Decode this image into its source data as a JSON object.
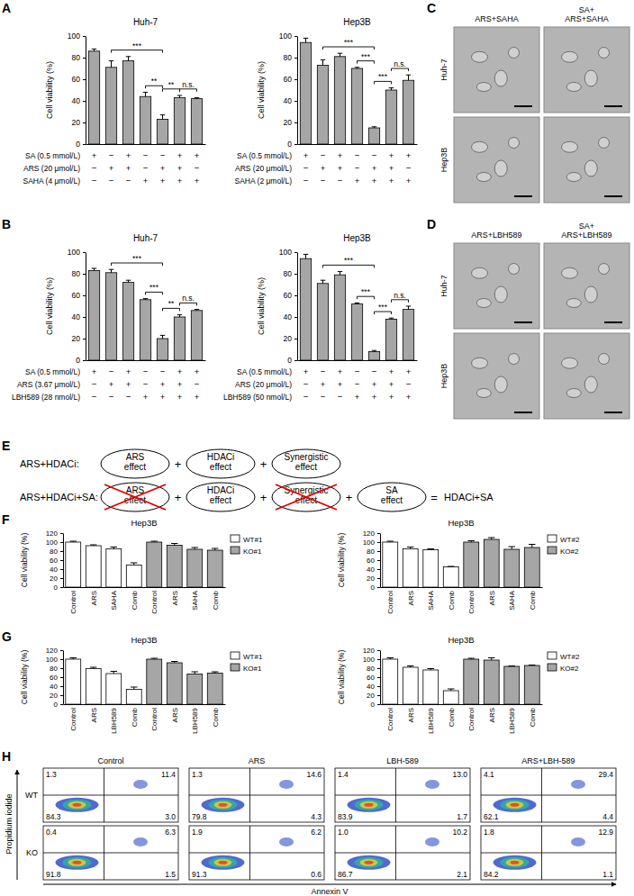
{
  "panel_labels": [
    "A",
    "B",
    "C",
    "D",
    "E",
    "F",
    "G",
    "H"
  ],
  "chart_data": [
    {
      "type": "bar",
      "title": "Huh-7",
      "y_label": "Cell viability (%)",
      "categories": [
        null,
        null,
        null,
        null,
        null,
        null,
        null
      ],
      "values": [
        86,
        71,
        77,
        44,
        23,
        43,
        42
      ],
      "errors": [
        2,
        6,
        4,
        4,
        4,
        2,
        1
      ],
      "color": "#a6a6a6",
      "ylim": [
        0,
        100
      ],
      "yticks": [
        0,
        20,
        40,
        60,
        80,
        100
      ],
      "conditions": [
        {
          "label": "SA (0.5 mmol/L)",
          "signs": [
            "+",
            "−",
            "+",
            "−",
            "−",
            "+",
            "+"
          ]
        },
        {
          "label": "ARS (20 μmol/L)",
          "signs": [
            "−",
            "+",
            "+",
            "−",
            "+",
            "+",
            "−"
          ]
        },
        {
          "label": "SAHA (4 μmol/L)",
          "signs": [
            "−",
            "−",
            "−",
            "+",
            "+",
            "+",
            "+"
          ]
        }
      ],
      "significance": [
        {
          "from": 1,
          "to": 4,
          "label": "***"
        },
        {
          "from": 3,
          "to": 4,
          "label": "**"
        },
        {
          "from": 4,
          "to": 5,
          "label": "**"
        },
        {
          "from": 5,
          "to": 6,
          "label": "n.s."
        }
      ]
    },
    {
      "type": "bar",
      "title": "Hep3B",
      "y_label": "Cell viability (%)",
      "categories": [
        null,
        null,
        null,
        null,
        null,
        null,
        null
      ],
      "values": [
        94,
        73,
        81,
        70,
        15,
        50,
        59
      ],
      "errors": [
        4,
        5,
        3,
        1,
        1,
        2,
        5
      ],
      "color": "#a6a6a6",
      "ylim": [
        0,
        100
      ],
      "yticks": [
        0,
        20,
        40,
        60,
        80,
        100
      ],
      "conditions": [
        {
          "label": "SA (0.5 mmol/L)",
          "signs": [
            "+",
            "−",
            "+",
            "−",
            "−",
            "+",
            "+"
          ]
        },
        {
          "label": "ARS (20 μmol/L)",
          "signs": [
            "−",
            "+",
            "+",
            "−",
            "+",
            "+",
            "−"
          ]
        },
        {
          "label": "SAHA (2 μmol/L)",
          "signs": [
            "−",
            "−",
            "−",
            "+",
            "+",
            "+",
            "+"
          ]
        }
      ],
      "significance": [
        {
          "from": 1,
          "to": 4,
          "label": "***"
        },
        {
          "from": 3,
          "to": 4,
          "label": "***"
        },
        {
          "from": 4,
          "to": 5,
          "label": "***"
        },
        {
          "from": 5,
          "to": 6,
          "label": "n.s."
        }
      ]
    },
    {
      "type": "bar",
      "title": "Huh-7",
      "y_label": "Cell viability (%)",
      "categories": [
        null,
        null,
        null,
        null,
        null,
        null,
        null
      ],
      "values": [
        83,
        81,
        72,
        56,
        20,
        40,
        46
      ],
      "errors": [
        2,
        3,
        2,
        1,
        3,
        2,
        1
      ],
      "color": "#a6a6a6",
      "ylim": [
        0,
        100
      ],
      "yticks": [
        0,
        20,
        40,
        60,
        80,
        100
      ],
      "conditions": [
        {
          "label": "SA (0.5 mmol/L)",
          "signs": [
            "+",
            "−",
            "+",
            "−",
            "−",
            "+",
            "+"
          ]
        },
        {
          "label": "ARS (3.67 μmol/L)",
          "signs": [
            "−",
            "+",
            "+",
            "−",
            "+",
            "+",
            "−"
          ]
        },
        {
          "label": "LBH589 (28 nmol/L)",
          "signs": [
            "−",
            "−",
            "−",
            "+",
            "+",
            "+",
            "+"
          ]
        }
      ],
      "significance": [
        {
          "from": 1,
          "to": 4,
          "label": "***"
        },
        {
          "from": 3,
          "to": 4,
          "label": "***"
        },
        {
          "from": 4,
          "to": 5,
          "label": "**"
        },
        {
          "from": 5,
          "to": 6,
          "label": "n.s."
        }
      ]
    },
    {
      "type": "bar",
      "title": "Hep3B",
      "y_label": "Cell viability (%)",
      "categories": [
        null,
        null,
        null,
        null,
        null,
        null,
        null
      ],
      "values": [
        94,
        71,
        79,
        52,
        8,
        38,
        47
      ],
      "errors": [
        4,
        3,
        3,
        1,
        1,
        1,
        3
      ],
      "color": "#a6a6a6",
      "ylim": [
        0,
        100
      ],
      "yticks": [
        0,
        20,
        40,
        60,
        80,
        100
      ],
      "conditions": [
        {
          "label": "SA (0.5 mmol/L)",
          "signs": [
            "+",
            "−",
            "+",
            "−",
            "−",
            "+",
            "+"
          ]
        },
        {
          "label": "ARS (20 μmol/L)",
          "signs": [
            "−",
            "+",
            "+",
            "−",
            "+",
            "+",
            "−"
          ]
        },
        {
          "label": "LBH589 (50 nmol/L)",
          "signs": [
            "−",
            "−",
            "−",
            "+",
            "+",
            "+",
            "+"
          ]
        }
      ],
      "significance": [
        {
          "from": 1,
          "to": 4,
          "label": "***"
        },
        {
          "from": 3,
          "to": 4,
          "label": "***"
        },
        {
          "from": 4,
          "to": 5,
          "label": "***"
        },
        {
          "from": 5,
          "to": 6,
          "label": "n.s."
        }
      ]
    },
    {
      "type": "bar",
      "title": "Hep3B",
      "y_label": "Cell viability (%)",
      "categories": [
        "Control",
        "ARS",
        "SAHA",
        "Comb",
        "Control",
        "ARS",
        "SAHA",
        "Comb"
      ],
      "series": [
        {
          "name": "WT#1",
          "color": "#ffffff",
          "values": [
            100,
            92,
            85,
            49,
            null,
            null,
            null,
            null
          ],
          "errors": [
            2,
            2,
            4,
            5,
            null,
            null,
            null,
            null
          ]
        },
        {
          "name": "KO#1",
          "color": "#a6a6a6",
          "values": [
            null,
            null,
            null,
            null,
            100,
            93,
            84,
            82
          ],
          "errors": [
            null,
            null,
            null,
            null,
            2,
            4,
            4,
            4
          ]
        }
      ],
      "ylim": [
        0,
        120
      ],
      "yticks": [
        0,
        20,
        40,
        60,
        80,
        100,
        120
      ],
      "legend": "upper right"
    },
    {
      "type": "bar",
      "title": "Hep3B",
      "y_label": "Cell viability (%)",
      "categories": [
        "Control",
        "ARS",
        "SAHA",
        "Comb",
        "Control",
        "ARS",
        "SAHA",
        "Comb"
      ],
      "series": [
        {
          "name": "WT#2",
          "color": "#ffffff",
          "values": [
            100,
            85,
            83,
            45,
            null,
            null,
            null,
            null
          ],
          "errors": [
            2,
            4,
            2,
            1,
            null,
            null,
            null,
            null
          ]
        },
        {
          "name": "KO#2",
          "color": "#a6a6a6",
          "values": [
            null,
            null,
            null,
            null,
            100,
            106,
            84,
            88
          ],
          "errors": [
            null,
            null,
            null,
            null,
            3,
            4,
            6,
            7
          ]
        }
      ],
      "ylim": [
        0,
        120
      ],
      "yticks": [
        0,
        20,
        40,
        60,
        80,
        100,
        120
      ],
      "legend": "upper right"
    },
    {
      "type": "bar",
      "title": "Hep3B",
      "y_label": "Cell viability (%)",
      "categories": [
        "Control",
        "ARS",
        "LBH589",
        "Comb",
        "Control",
        "ARS",
        "LBH589",
        "Comb"
      ],
      "series": [
        {
          "name": "WT#1",
          "color": "#ffffff",
          "values": [
            100,
            79,
            68,
            33,
            null,
            null,
            null,
            null
          ],
          "errors": [
            3,
            3,
            5,
            5,
            null,
            null,
            null,
            null
          ]
        },
        {
          "name": "KO#1",
          "color": "#a6a6a6",
          "values": [
            null,
            null,
            null,
            null,
            100,
            92,
            67,
            69
          ],
          "errors": [
            null,
            null,
            null,
            null,
            2,
            3,
            5,
            3
          ]
        }
      ],
      "ylim": [
        0,
        120
      ],
      "yticks": [
        0,
        20,
        40,
        60,
        80,
        100,
        120
      ],
      "legend": "upper right"
    },
    {
      "type": "bar",
      "title": "Hep3B",
      "y_label": "Cell viability (%)",
      "categories": [
        "Control",
        "ARS",
        "LBH589",
        "Comb",
        "Control",
        "ARS",
        "LBH589",
        "Comb"
      ],
      "series": [
        {
          "name": "WT#2",
          "color": "#ffffff",
          "values": [
            100,
            82,
            76,
            30,
            null,
            null,
            null,
            null
          ],
          "errors": [
            3,
            3,
            3,
            4,
            null,
            null,
            null,
            null
          ]
        },
        {
          "name": "KO#2",
          "color": "#a6a6a6",
          "values": [
            null,
            null,
            null,
            null,
            100,
            98,
            84,
            86
          ],
          "errors": [
            null,
            null,
            null,
            null,
            2,
            5,
            1,
            1
          ]
        }
      ],
      "ylim": [
        0,
        120
      ],
      "yticks": [
        0,
        20,
        40,
        60,
        80,
        100,
        120
      ],
      "legend": "upper right"
    }
  ],
  "micrographs": [
    {
      "columns": [
        [
          "ARS+SAHA"
        ],
        [
          "SA+",
          "ARS+SAHA"
        ]
      ],
      "rows": [
        "Huh-7",
        "Hep3B"
      ]
    },
    {
      "columns": [
        [
          "ARS+LBH589"
        ],
        [
          "SA+",
          "ARS+LBH589"
        ]
      ],
      "rows": [
        "Huh-7",
        "Hep3B"
      ]
    }
  ],
  "diagram": {
    "plus": "+",
    "equals": "=",
    "rows": [
      {
        "label": "ARS+HDACi:",
        "terms": [
          {
            "lines": [
              "ARS",
              "effect"
            ],
            "crossed": false
          },
          {
            "lines": [
              "HDACi",
              "effect"
            ],
            "crossed": false
          },
          {
            "lines": [
              "Synergistic",
              "effect"
            ],
            "crossed": false
          }
        ]
      },
      {
        "label": "ARS+HDACi+SA:",
        "terms": [
          {
            "lines": [
              "ARS",
              "effect"
            ],
            "crossed": true
          },
          {
            "lines": [
              "HDACi",
              "effect"
            ],
            "crossed": false
          },
          {
            "lines": [
              "Synergistic",
              "effect"
            ],
            "crossed": true
          },
          {
            "lines": [
              "SA",
              "effect"
            ],
            "crossed": false
          }
        ],
        "result": "HDACi+SA"
      }
    ]
  },
  "flow": {
    "y_label": "Propidium iodide",
    "x_label": "Annexin V",
    "columns": [
      "Control",
      "ARS",
      "LBH-589",
      "ARS+LBH-589"
    ],
    "rows": [
      {
        "label": "WT",
        "quadrants": [
          [
            "1.3",
            "11.4",
            "84.3",
            "3.0"
          ],
          [
            "1.3",
            "14.6",
            "79.8",
            "4.3"
          ],
          [
            "1.4",
            "13.0",
            "83.9",
            "1.7"
          ],
          [
            "4.1",
            "29.4",
            "62.1",
            "4.4"
          ]
        ]
      },
      {
        "label": "KO",
        "quadrants": [
          [
            "0.4",
            "6.3",
            "91.8",
            "1.5"
          ],
          [
            "1.9",
            "6.2",
            "91.3",
            "0.6"
          ],
          [
            "1.0",
            "10.2",
            "86.7",
            "2.1"
          ],
          [
            "1.8",
            "12.9",
            "84.2",
            "1.1"
          ]
        ]
      }
    ]
  }
}
